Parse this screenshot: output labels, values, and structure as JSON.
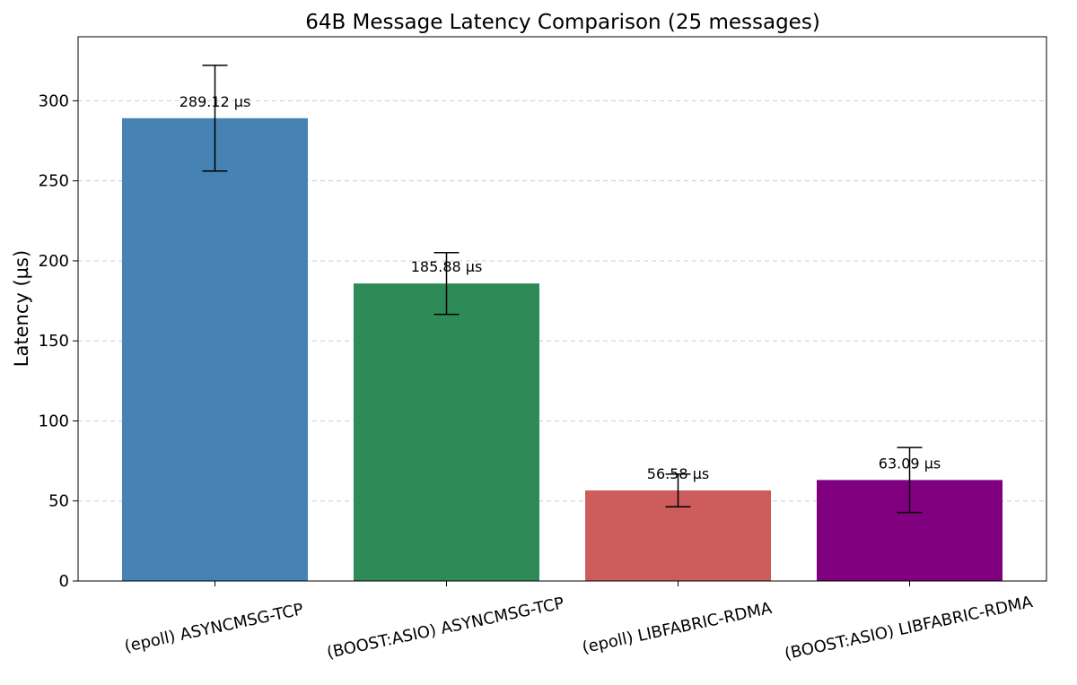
{
  "chart_data": {
    "type": "bar",
    "title": "64B Message Latency Comparison (25 messages)",
    "xlabel": "",
    "ylabel": "Latency (µs)",
    "ylim": [
      0,
      340
    ],
    "yticks": [
      0,
      50,
      100,
      150,
      200,
      250,
      300
    ],
    "grid": true,
    "categories": [
      "(epoll) ASYNCMSG-TCP",
      "(BOOST:ASIO) ASYNCMSG-TCP",
      "(epoll) LIBFABRIC-RDMA",
      "(BOOST:ASIO) LIBFABRIC-RDMA"
    ],
    "values": [
      289.12,
      185.88,
      56.58,
      63.09
    ],
    "errors": [
      33,
      19.3,
      10.2,
      20.3
    ],
    "value_labels": [
      "289.12 µs",
      "185.88 µs",
      "56.58 µs",
      "63.09 µs"
    ],
    "colors": [
      "#4682b4",
      "#2e8b57",
      "#cd5c5c",
      "#800080"
    ]
  }
}
